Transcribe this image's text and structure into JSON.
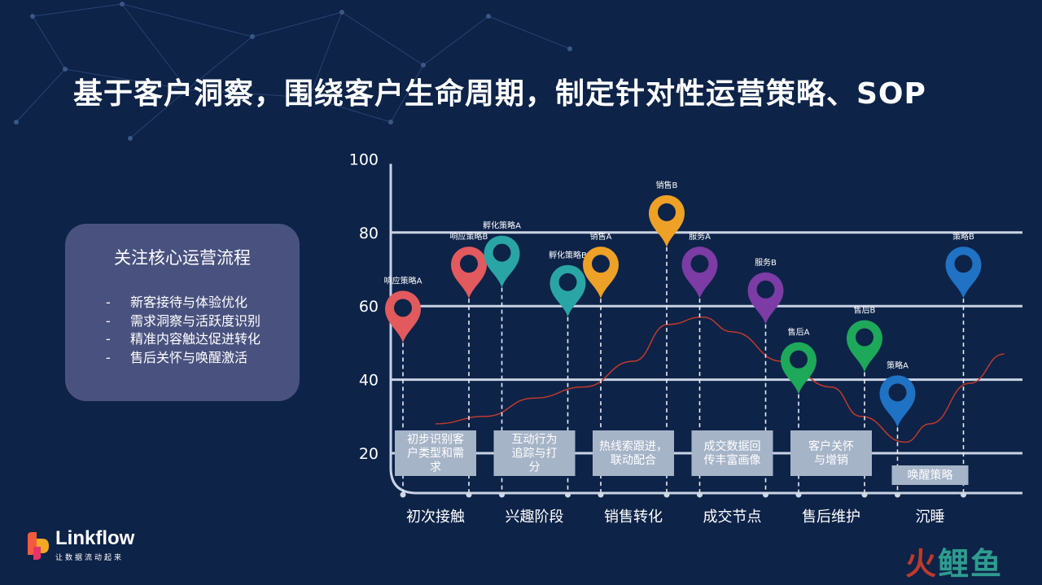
{
  "title": "基于客户洞察，围绕客户生命周期，制定针对性运营策略、SOP",
  "card": {
    "heading": "关注核心运营流程",
    "items": [
      {
        "dash": "-",
        "text": "新客接待与体验优化"
      },
      {
        "dash": "-",
        "text": "需求洞察与活跃度识别"
      },
      {
        "dash": "-",
        "text": "精准内容触达促进转化"
      },
      {
        "dash": "-",
        "text": "售后关怀与唤醒激活"
      }
    ]
  },
  "chart_data": {
    "type": "line",
    "yticks": [
      20,
      40,
      60,
      80,
      100
    ],
    "ylim": [
      15,
      100
    ],
    "grid": true,
    "stages": [
      {
        "name": "初次接触",
        "box_lines": [
          "初步识别客",
          "户类型和需",
          "求"
        ],
        "markers": [
          {
            "label": "响应策略A",
            "value": 50,
            "color": "#e25a5d"
          },
          {
            "label": "响应策略B",
            "value": 62,
            "color": "#e25a5d"
          }
        ]
      },
      {
        "name": "兴趣阶段",
        "box_lines": [
          "互动行为",
          "追踪与打",
          "分"
        ],
        "markers": [
          {
            "label": "孵化策略A",
            "value": 65,
            "color": "#2aa5a5"
          },
          {
            "label": "孵化策略B",
            "value": 57,
            "color": "#2aa5a5"
          }
        ]
      },
      {
        "name": "销售转化",
        "box_lines": [
          "热线索跟进，",
          "联动配合"
        ],
        "markers": [
          {
            "label": "销售A",
            "value": 62,
            "color": "#eda126"
          },
          {
            "label": "销售B",
            "value": 76,
            "color": "#eda126"
          }
        ]
      },
      {
        "name": "成交节点",
        "box_lines": [
          "成交数据回",
          "传丰富画像"
        ],
        "markers": [
          {
            "label": "服务A",
            "value": 62,
            "color": "#7d3ba5"
          },
          {
            "label": "服务B",
            "value": 55,
            "color": "#7d3ba5"
          }
        ]
      },
      {
        "name": "售后维护",
        "box_lines": [
          "客户关怀",
          "与增销"
        ],
        "markers": [
          {
            "label": "售后A",
            "value": 36,
            "color": "#1ea85a"
          },
          {
            "label": "售后B",
            "value": 42,
            "color": "#1ea85a"
          }
        ]
      },
      {
        "name": "沉睡",
        "box_lines": [
          "唤醒策略"
        ],
        "markers": [
          {
            "label": "策略A",
            "value": 27,
            "color": "#1f72c4"
          },
          {
            "label": "策略B",
            "value": 62,
            "color": "#1f72c4"
          }
        ]
      }
    ],
    "curve": [
      {
        "x": 0.0,
        "y": 28
      },
      {
        "x": 0.5,
        "y": 30
      },
      {
        "x": 1.0,
        "y": 35
      },
      {
        "x": 1.5,
        "y": 38
      },
      {
        "x": 2.0,
        "y": 45
      },
      {
        "x": 2.35,
        "y": 55
      },
      {
        "x": 2.7,
        "y": 57
      },
      {
        "x": 3.0,
        "y": 53
      },
      {
        "x": 3.5,
        "y": 45
      },
      {
        "x": 4.0,
        "y": 38
      },
      {
        "x": 4.3,
        "y": 30
      },
      {
        "x": 4.75,
        "y": 23
      },
      {
        "x": 5.0,
        "y": 28
      },
      {
        "x": 5.4,
        "y": 39
      },
      {
        "x": 5.75,
        "y": 47
      }
    ],
    "curve_color": "#c0392b"
  },
  "logo": {
    "name": "Linkflow",
    "slogan": "让数据流动起来"
  },
  "watermark": {
    "part1": "火",
    "part2": "鲤鱼"
  }
}
